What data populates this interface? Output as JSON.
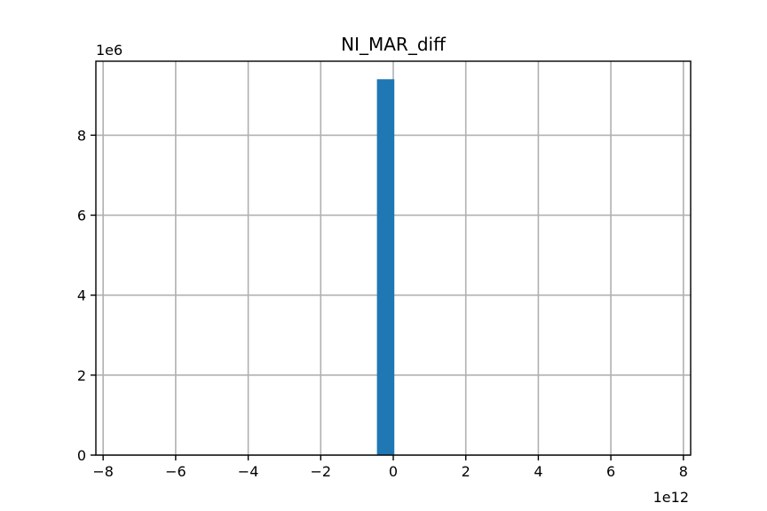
{
  "chart_data": {
    "type": "bar",
    "title": "NI_MAR_diff",
    "xlabel": "",
    "ylabel": "",
    "x_offset_label": "1e12",
    "y_offset_label": "1e6",
    "xlim": [
      -8.2,
      8.2
    ],
    "ylim": [
      0,
      9.85
    ],
    "xticks": [
      -8,
      -6,
      -4,
      -2,
      0,
      2,
      4,
      6,
      8
    ],
    "xtick_labels": [
      "−8",
      "−6",
      "−4",
      "−2",
      "0",
      "2",
      "4",
      "6",
      "8"
    ],
    "yticks": [
      0,
      2,
      4,
      6,
      8
    ],
    "ytick_labels": [
      "0",
      "2",
      "4",
      "6",
      "8"
    ],
    "grid": true,
    "bar_color": "#1f77b4",
    "bins": [
      {
        "x0": -0.45,
        "x1": 0.03,
        "value": 9.4
      }
    ]
  }
}
